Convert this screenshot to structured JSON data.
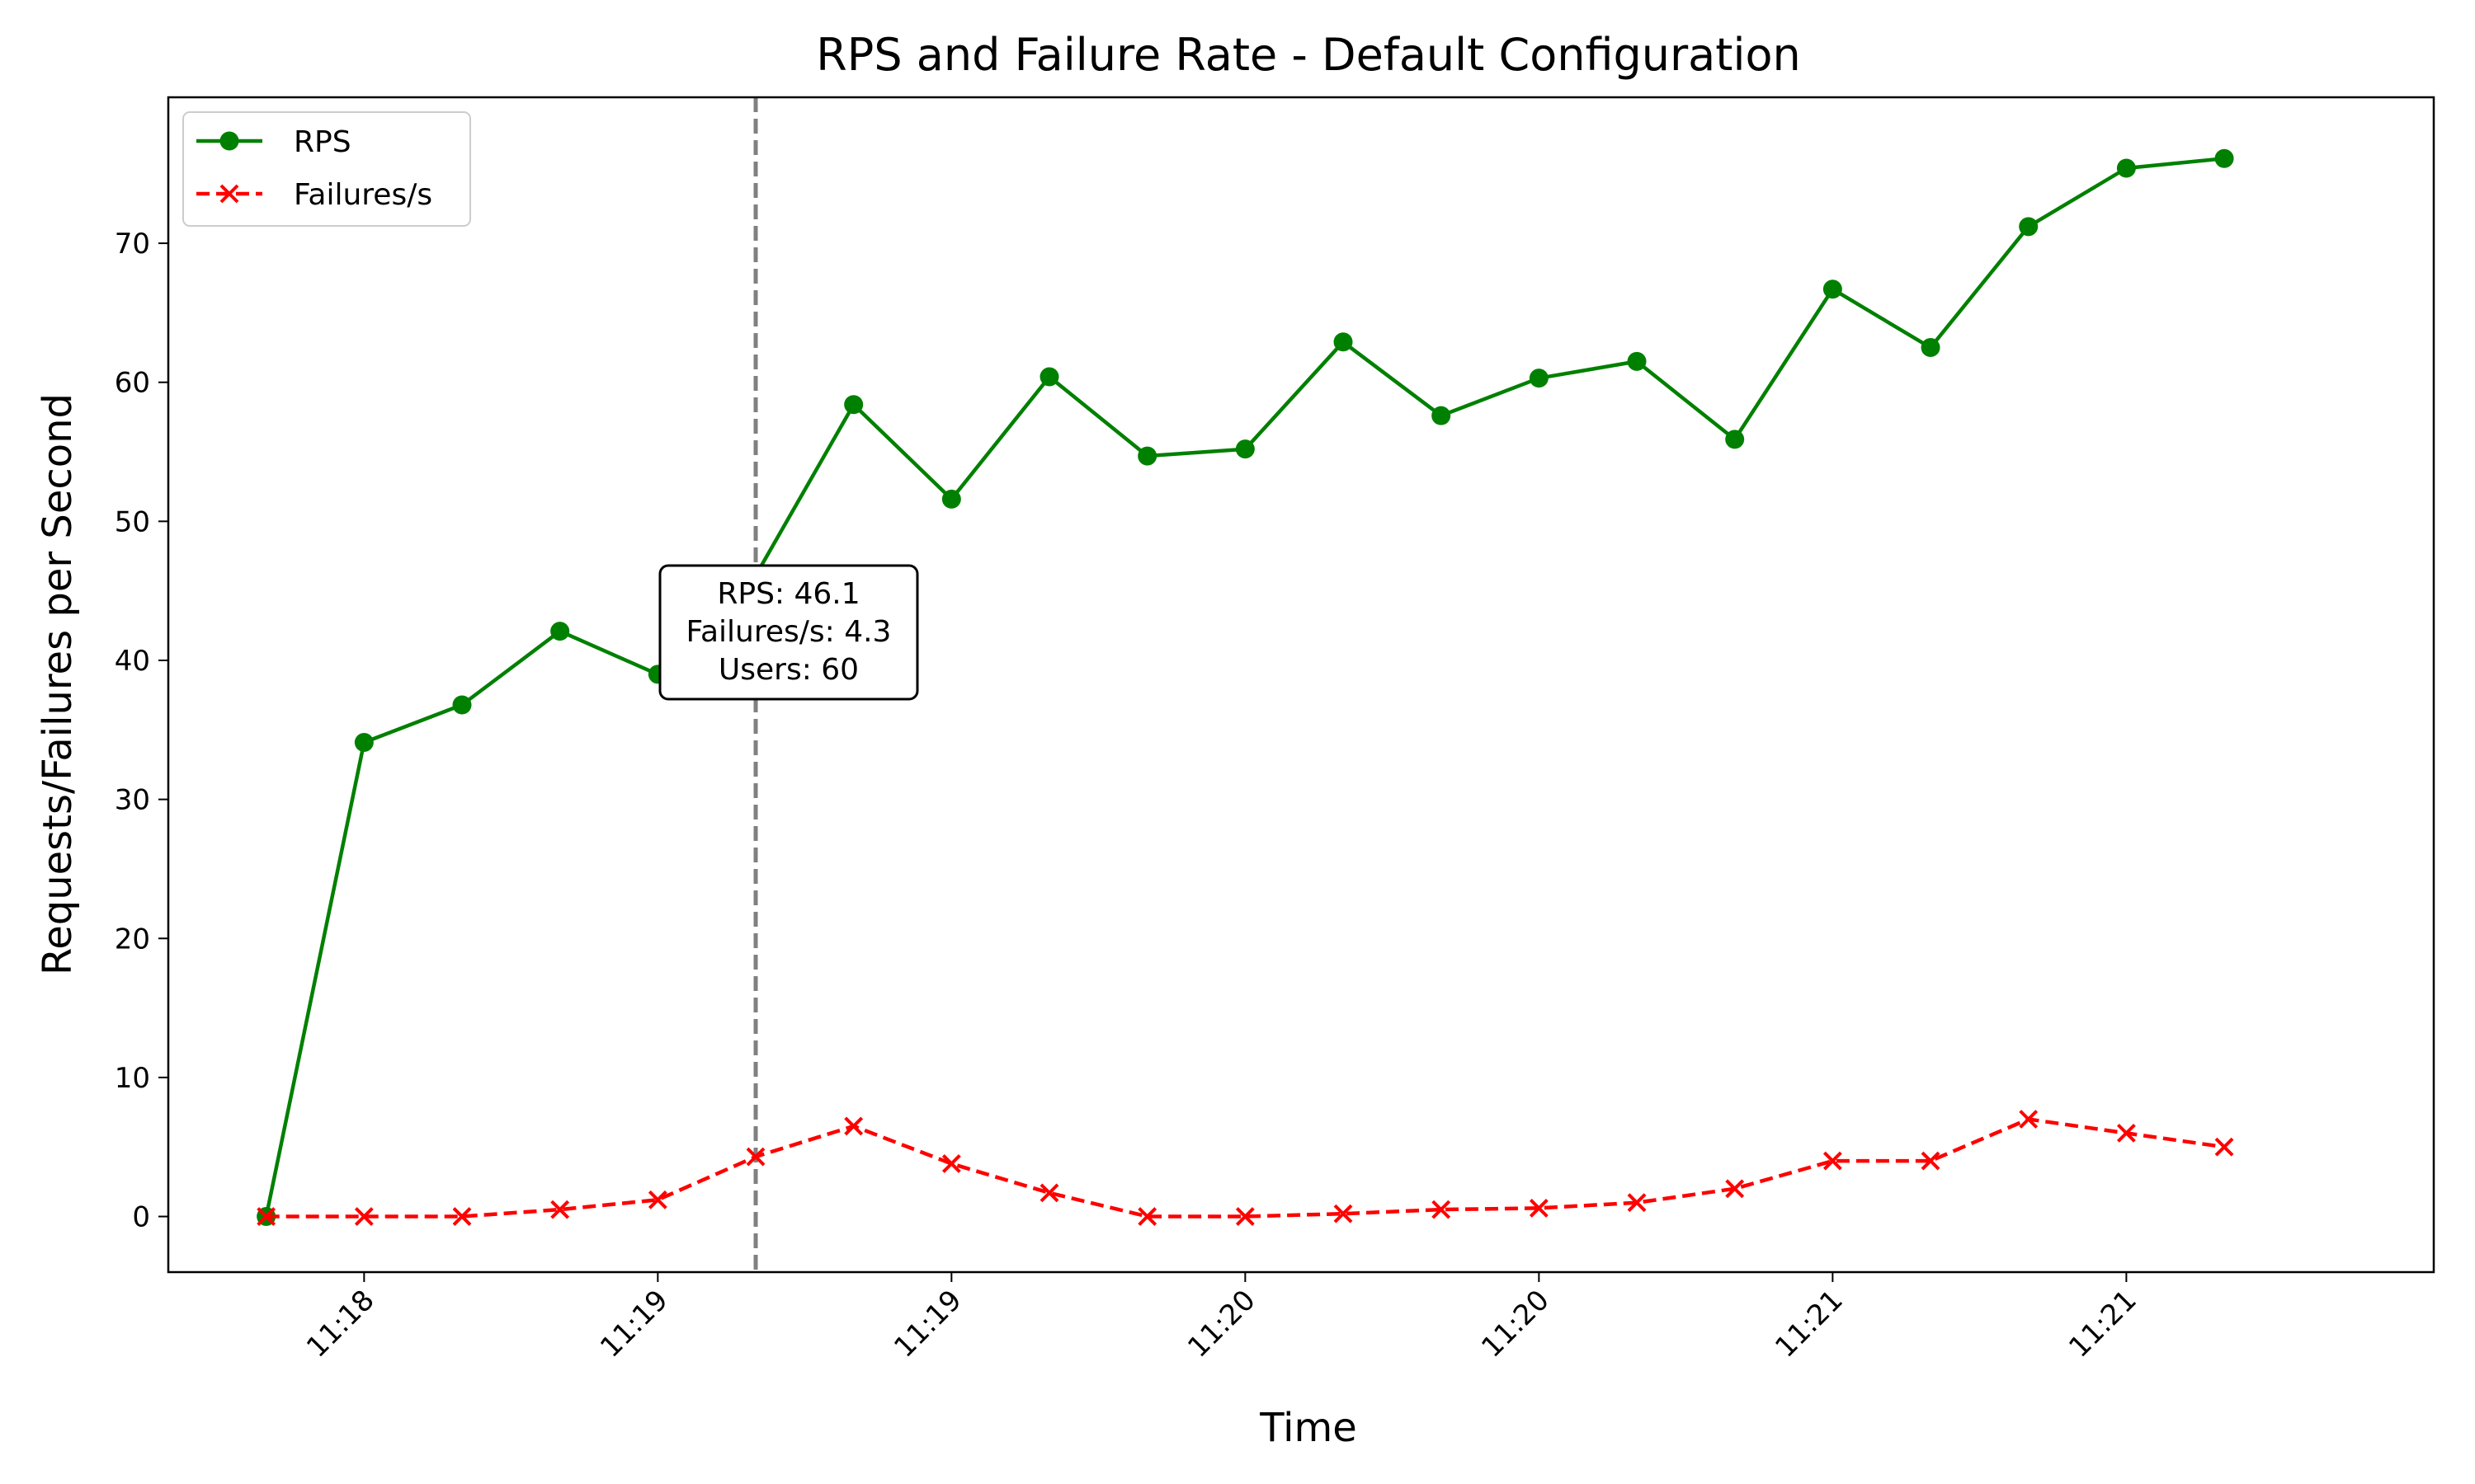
{
  "chart_data": {
    "type": "line",
    "title": "RPS and Failure Rate - Default Configuration",
    "xlabel": "Time",
    "ylabel": "Requests/Failures per Second",
    "ylim": [
      -4,
      80.5
    ],
    "yticks": [
      0,
      10,
      20,
      30,
      40,
      50,
      60,
      70
    ],
    "x_range_minutes": [
      0,
      11.57
    ],
    "x_ticks": [
      {
        "t": 1.0,
        "label": "11:18"
      },
      {
        "t": 2.5,
        "label": "11:19"
      },
      {
        "t": 4.0,
        "label": "11:19"
      },
      {
        "t": 5.5,
        "label": "11:20"
      },
      {
        "t": 7.0,
        "label": "11:20"
      },
      {
        "t": 8.5,
        "label": "11:21"
      },
      {
        "t": 10.0,
        "label": "11:21"
      }
    ],
    "x_minutes": [
      0.5,
      1.0,
      1.5,
      2.0,
      2.5,
      3.0,
      3.5,
      4.0,
      4.5,
      5.0,
      5.5,
      6.0,
      6.5,
      7.0,
      7.5,
      8.0,
      8.5,
      9.0,
      9.5,
      10.0,
      10.5
    ],
    "series": [
      {
        "name": "RPS",
        "color": "#008000",
        "style": "solid",
        "marker": "circle",
        "values": [
          0,
          34.1,
          36.8,
          42.1,
          39.0,
          46.1,
          58.4,
          51.6,
          60.4,
          54.7,
          55.2,
          62.9,
          57.6,
          60.3,
          61.5,
          55.9,
          66.7,
          62.5,
          71.2,
          75.4,
          76.1
        ]
      },
      {
        "name": "Failures/s",
        "color": "#ff0000",
        "style": "dashed",
        "marker": "x",
        "values": [
          0,
          0,
          0,
          0.5,
          1.2,
          4.3,
          6.5,
          3.8,
          1.7,
          0,
          0,
          0.2,
          0.5,
          0.6,
          1.0,
          2.0,
          4.0,
          4.0,
          7.0,
          6.0,
          5.0
        ]
      }
    ],
    "vline_at_minutes": 3.0,
    "annotation": {
      "lines": [
        "RPS: 46.1",
        "Failures/s: 4.3",
        "Users: 60"
      ]
    },
    "legend_location": "upper-left"
  }
}
